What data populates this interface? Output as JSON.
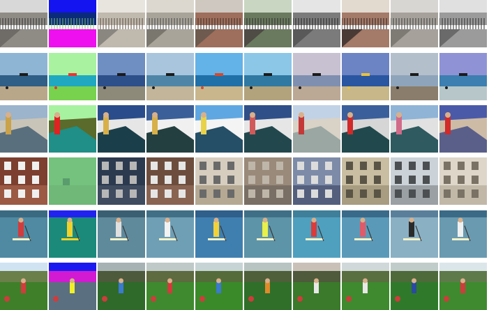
{
  "figure": {
    "rows": 6,
    "columns": 10,
    "column_roles": [
      "real-photo",
      "segmentation-map",
      "generated",
      "generated",
      "generated",
      "generated",
      "generated",
      "generated",
      "generated",
      "generated"
    ]
  },
  "rows": [
    {
      "scene": "street-sidewalk-fence",
      "palette": {
        "sky": "#c9ccd3",
        "mid": "#9a9a9a",
        "ground": "#6b6b6b",
        "accent": "#4a4a4a"
      },
      "tiles": [
        {
          "sky": "#d8d8d8",
          "mid": "#8f8b85",
          "ground": "#6f6c67",
          "accent": "#2e2e2e"
        },
        {
          "seg": true,
          "sky": "#1414f0",
          "mid": "#0a2a7a",
          "ground": "#ee10ee",
          "accent": "#7fbf6a"
        },
        {
          "sky": "#e8e5df",
          "mid": "#bfb9ae",
          "ground": "#8a8780",
          "accent": "#5b4a3f"
        },
        {
          "sky": "#dcd8d0",
          "mid": "#a9a49a",
          "ground": "#7a776f",
          "accent": "#444"
        },
        {
          "sky": "#cfc8c0",
          "mid": "#9e6f5c",
          "ground": "#6e5a4e",
          "accent": "#3a2a22"
        },
        {
          "sky": "#c9d6c2",
          "mid": "#6a7a5e",
          "ground": "#4e4c45",
          "accent": "#2b2b2b"
        },
        {
          "sky": "#e5e5e5",
          "mid": "#7b7b7b",
          "ground": "#595959",
          "accent": "#222"
        },
        {
          "sky": "#e2d9cf",
          "mid": "#a47a68",
          "ground": "#4a3a35",
          "accent": "#2a1f1b"
        },
        {
          "sky": "#d8d6d2",
          "mid": "#a6a29b",
          "ground": "#7e7b74",
          "accent": "#3b3b3b"
        },
        {
          "sky": "#e0e0e0",
          "mid": "#9b9b9b",
          "ground": "#6a6a6a",
          "accent": "#2a2a2a"
        }
      ]
    },
    {
      "scene": "beach-horizon",
      "tiles": [
        {
          "sky": "#8fb5d4",
          "mid": "#2f5e86",
          "ground": "#b9a78a",
          "accent": "#1b1b1b"
        },
        {
          "seg": true,
          "sky": "#a8f2a0",
          "mid": "#20a8c0",
          "ground": "#78d24e",
          "accent": "#f03232"
        },
        {
          "sky": "#6f8fc2",
          "mid": "#2d4f8a",
          "ground": "#8d8a7a",
          "accent": "#1b1b1b"
        },
        {
          "sky": "#a9c5de",
          "mid": "#4f86a8",
          "ground": "#c2b59a",
          "accent": "#1b1b1b"
        },
        {
          "sky": "#63b2e8",
          "mid": "#1f6fa8",
          "ground": "#c9b68c",
          "accent": "#d8492b"
        },
        {
          "sky": "#8cc7e8",
          "mid": "#2f79a3",
          "ground": "#b2a37d",
          "accent": "#1b1b1b"
        },
        {
          "sky": "#c8c1d2",
          "mid": "#7f8fb0",
          "ground": "#bba895",
          "accent": "#1b1b1b"
        },
        {
          "sky": "#6c83c4",
          "mid": "#2a56a1",
          "ground": "#c8b889",
          "accent": "#e8c23a"
        },
        {
          "sky": "#b4bfcc",
          "mid": "#8ea4bb",
          "ground": "#8a7d6b",
          "accent": "#1b1b1b"
        },
        {
          "sky": "#8f93d6",
          "mid": "#3c7fb0",
          "ground": "#b7c7c9",
          "accent": "#1b1b1b"
        }
      ]
    },
    {
      "scene": "surfer-shore",
      "tiles": [
        {
          "sky": "#9cb4cc",
          "mid": "#5a6f7e",
          "ground": "#c9c4b8",
          "accent": "#caa24a"
        },
        {
          "seg": true,
          "sky": "#a7f2a0",
          "mid": "#1f8f87",
          "ground": "#5b6b2b",
          "accent": "#e02222"
        },
        {
          "sky": "#2a4c8a",
          "mid": "#1b3f4a",
          "ground": "#e6e6e6",
          "accent": "#d7b04a"
        },
        {
          "sky": "#3b5f98",
          "mid": "#243f3f",
          "ground": "#f0f0f0",
          "accent": "#d7b04a"
        },
        {
          "sky": "#5fa7e2",
          "mid": "#244f66",
          "ground": "#f4f4f4",
          "accent": "#e8d24a"
        },
        {
          "sky": "#2f4f88",
          "mid": "#22484e",
          "ground": "#e6e6e6",
          "accent": "#d05a5a"
        },
        {
          "sky": "#c2d2e6",
          "mid": "#9aa7a3",
          "ground": "#d9d2c6",
          "accent": "#c43838"
        },
        {
          "sky": "#3b5f9a",
          "mid": "#21494d",
          "ground": "#d6d6d6",
          "accent": "#d02a2a"
        },
        {
          "sky": "#8fb4d6",
          "mid": "#2f5a5f",
          "ground": "#e1e1e1",
          "accent": "#d26a8a"
        },
        {
          "sky": "#4b5aa8",
          "mid": "#5a5f8a",
          "ground": "#cdbba6",
          "accent": "#d02a2a"
        }
      ]
    },
    {
      "scene": "building-facade",
      "tiles": [
        {
          "sky": "#7d3f2f",
          "mid": "#9c5a44",
          "ground": "#5b2d22",
          "accent": "#f0f0f0"
        },
        {
          "seg": true,
          "sky": "#74c27d",
          "mid": "#6fb878",
          "ground": "#5a9c6d",
          "accent": "#2e8b57"
        },
        {
          "sky": "#2c3a4f",
          "mid": "#3f4b5f",
          "ground": "#1e2632",
          "accent": "#b7b7b7"
        },
        {
          "sky": "#6d4e3e",
          "mid": "#8a6452",
          "ground": "#4d3428",
          "accent": "#e6e6e6"
        },
        {
          "sky": "#d6cdbf",
          "mid": "#b5a993",
          "ground": "#8e8574",
          "accent": "#6a6a6a"
        },
        {
          "sky": "#9a8a7a",
          "mid": "#7a6f64",
          "ground": "#5c534b",
          "accent": "#bfb6aa"
        },
        {
          "sky": "#7d8ba8",
          "mid": "#545f7e",
          "ground": "#3f475f",
          "accent": "#dcdcdc"
        },
        {
          "sky": "#c9bea2",
          "mid": "#a89d81",
          "ground": "#7d745f",
          "accent": "#5a5446"
        },
        {
          "sky": "#cbd2d8",
          "mid": "#9aa0a4",
          "ground": "#6f7377",
          "accent": "#4b4f52"
        },
        {
          "sky": "#ddd6c9",
          "mid": "#c1b8a8",
          "ground": "#9a917f",
          "accent": "#7a7264"
        }
      ]
    },
    {
      "scene": "paddleboard-water",
      "tiles": [
        {
          "sky": "#3a6a82",
          "mid": "#4f8aa2",
          "ground": "#2b5c73",
          "accent": "#d23c3c"
        },
        {
          "seg": true,
          "sky": "#2222f0",
          "mid": "#1b8a7b",
          "ground": "#7cff4a",
          "accent": "#f0d22a"
        },
        {
          "sky": "#3a5f72",
          "mid": "#5f8a9c",
          "ground": "#2b4a5b",
          "accent": "#e0e0e0"
        },
        {
          "sky": "#406f86",
          "mid": "#6f9fb5",
          "ground": "#3a6a80",
          "accent": "#f2f2f2"
        },
        {
          "sky": "#2f5f8a",
          "mid": "#3f7fb0",
          "ground": "#2a5a80",
          "accent": "#f2d23a"
        },
        {
          "sky": "#3f6f86",
          "mid": "#5d94a8",
          "ground": "#345f74",
          "accent": "#e8f04a"
        },
        {
          "sky": "#3f7f9a",
          "mid": "#4fa0bf",
          "ground": "#2f6f8a",
          "accent": "#d83c3c"
        },
        {
          "sky": "#3a6a8a",
          "mid": "#5a9ab8",
          "ground": "#2f5f7a",
          "accent": "#e05a6a"
        },
        {
          "sky": "#5a7f9a",
          "mid": "#8ab0c4",
          "ground": "#4a6f86",
          "accent": "#2a2a2a"
        },
        {
          "sky": "#3a6a86",
          "mid": "#6a9ab0",
          "ground": "#2f5f74",
          "accent": "#f0f0f0"
        }
      ]
    },
    {
      "scene": "park-lawn-kid",
      "tiles": [
        {
          "sky": "#cfe3f3",
          "mid": "#6a7f4a",
          "ground": "#3f7f2a",
          "accent": "#d23c3c"
        },
        {
          "seg": true,
          "sky": "#1a1af0",
          "mid": "#d21ad2",
          "ground": "#5a6f7f",
          "accent": "#f0f02a"
        },
        {
          "sky": "#a7b2b5",
          "mid": "#4d5a3b",
          "ground": "#2f6a2a",
          "accent": "#3a7ad0"
        },
        {
          "sky": "#bfc9c7",
          "mid": "#5e6a3f",
          "ground": "#3f8a2f",
          "accent": "#d03c3c"
        },
        {
          "sky": "#c7d4d6",
          "mid": "#556c3a",
          "ground": "#3a8a2a",
          "accent": "#3a7ad0"
        },
        {
          "sky": "#b7c4c2",
          "mid": "#4e5f3a",
          "ground": "#2f6f2a",
          "accent": "#e08a2a"
        },
        {
          "sky": "#c9c1b8",
          "mid": "#4e5a3b",
          "ground": "#3a7a2a",
          "accent": "#e8e8e8"
        },
        {
          "sky": "#d0d8da",
          "mid": "#5a6f3f",
          "ground": "#3f8a2f",
          "accent": "#e8e8e8"
        },
        {
          "sky": "#c0ccc9",
          "mid": "#4e6a3a",
          "ground": "#2f7a2a",
          "accent": "#2a4aa0"
        },
        {
          "sky": "#dbe6ea",
          "mid": "#5f7a4a",
          "ground": "#3f8a2f",
          "accent": "#d03c3c"
        }
      ]
    }
  ]
}
